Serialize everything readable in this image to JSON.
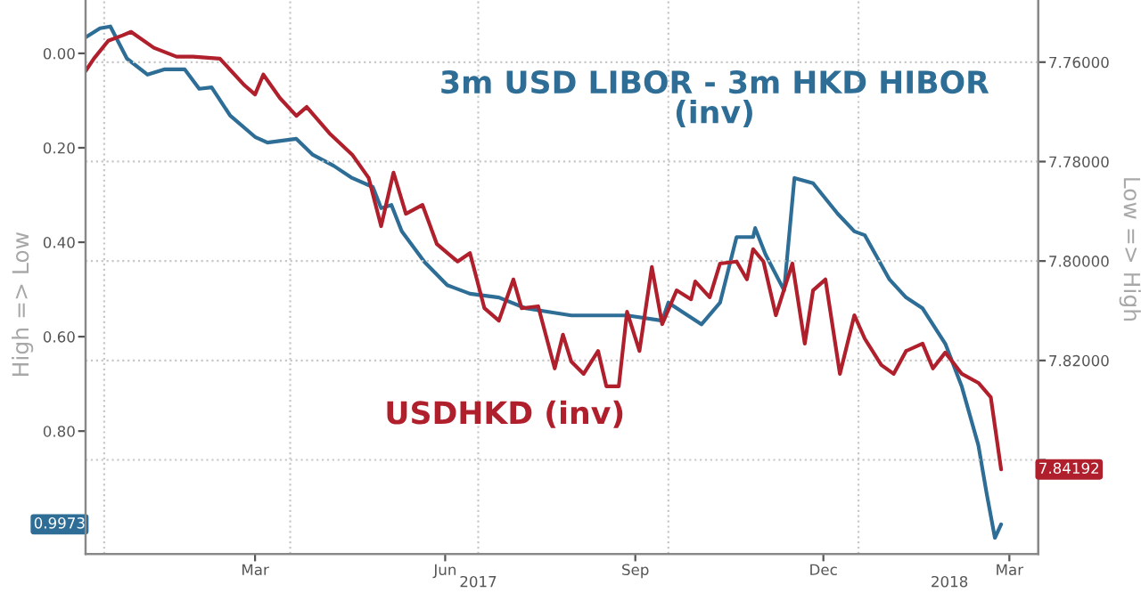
{
  "chart_data": {
    "type": "line",
    "ylabel": "High => Low",
    "y2label": "Low => High",
    "xlim": [
      "2016-12-23",
      "2018-03-29"
    ],
    "xticks": [
      {
        "value": "2017-03-15",
        "label": "Mar"
      },
      {
        "value": "2017-06-15",
        "label": "Jun"
      },
      {
        "value": "2017-09-15",
        "label": "Sep"
      },
      {
        "value": "2017-12-15",
        "label": "Dec"
      },
      {
        "value": "2018-03-15",
        "label": "Mar"
      }
    ],
    "x2lim": [
      "2016-12-23",
      "2018-03-29"
    ],
    "x2ticks": [
      {
        "value": "2017-07-01",
        "label": "2017"
      },
      {
        "value": "2018-02-14",
        "label": "2018"
      }
    ],
    "ylim": [
      1.06,
      -0.113
    ],
    "yticks": [
      {
        "value": 0,
        "label": "0.00"
      },
      {
        "value": 0.2,
        "label": "0.20"
      },
      {
        "value": 0.4,
        "label": "0.40"
      },
      {
        "value": 0.6,
        "label": "0.60"
      },
      {
        "value": 0.8,
        "label": "0.80"
      }
    ],
    "y2lim": [
      7.8589,
      7.7475
    ],
    "y2ticks": [
      {
        "value": 7.76,
        "label": "7.76000"
      },
      {
        "value": 7.78,
        "label": "7.78000"
      },
      {
        "value": 7.8,
        "label": "7.80000"
      },
      {
        "value": 7.82,
        "label": "7.82000"
      },
      {
        "value": 7.84,
        "label": null
      }
    ],
    "grid": "y",
    "legend": false,
    "ref_lines": [
      {
        "axis": "x",
        "value": "2017-01-01",
        "color": "#c8c8c8",
        "line_style": "dotted"
      },
      {
        "axis": "x",
        "value": "2017-04-01",
        "color": "#c8c8c8",
        "line_style": "dotted"
      },
      {
        "axis": "x",
        "value": "2017-07-01",
        "color": "#c8c8c8",
        "line_style": "dotted"
      },
      {
        "axis": "x",
        "value": "2017-10-01",
        "color": "#c8c8c8",
        "line_style": "dotted"
      },
      {
        "axis": "x",
        "value": "2018-01-01",
        "color": "#c8c8c8",
        "line_style": "dotted"
      }
    ],
    "annotations": [
      "0.9973",
      "7.84192"
    ],
    "series": [
      {
        "name": "3m USD LIBOR - 3m HKD HIBOR\n(inv)",
        "color": "#2e6e96",
        "axis": "y",
        "x": [
          "2016-12-23",
          "2016-12-30",
          "2017-01-04",
          "2017-01-12",
          "2017-01-22",
          "2017-01-30",
          "2017-02-09",
          "2017-02-16",
          "2017-02-22",
          "2017-03-03",
          "2017-03-15",
          "2017-03-21",
          "2017-04-04",
          "2017-04-12",
          "2017-04-22",
          "2017-05-01",
          "2017-05-11",
          "2017-05-15",
          "2017-05-20",
          "2017-05-25",
          "2017-06-05",
          "2017-06-16",
          "2017-06-27",
          "2017-07-11",
          "2017-07-24",
          "2017-08-15",
          "2017-09-11",
          "2017-09-28",
          "2017-10-01",
          "2017-10-17",
          "2017-10-26",
          "2017-11-03",
          "2017-11-11",
          "2017-11-12",
          "2017-11-17",
          "2017-11-26",
          "2017-12-01",
          "2017-12-10",
          "2017-12-22",
          "2017-12-30",
          "2018-01-04",
          "2018-01-16",
          "2018-01-24",
          "2018-02-01",
          "2018-02-12",
          "2018-02-20",
          "2018-02-28",
          "2018-03-04",
          "2018-03-08",
          "2018-03-11"
        ],
        "values": [
          -0.034,
          -0.053,
          -0.057,
          0.011,
          0.045,
          0.034,
          0.034,
          0.075,
          0.072,
          0.132,
          0.177,
          0.189,
          0.181,
          0.215,
          0.238,
          0.264,
          0.283,
          0.328,
          0.321,
          0.377,
          0.442,
          0.491,
          0.509,
          0.517,
          0.54,
          0.555,
          0.555,
          0.566,
          0.528,
          0.574,
          0.528,
          0.389,
          0.389,
          0.37,
          0.426,
          0.502,
          0.264,
          0.275,
          0.34,
          0.377,
          0.385,
          0.479,
          0.517,
          0.54,
          0.615,
          0.706,
          0.83,
          0.932,
          1.026,
          0.9973
        ]
      },
      {
        "name": "USDHKD (inv)",
        "color": "#b0202c",
        "axis": "y2",
        "x": [
          "2016-12-23",
          "2016-12-27",
          "2017-01-03",
          "2017-01-10",
          "2017-01-14",
          "2017-01-25",
          "2017-02-05",
          "2017-02-13",
          "2017-02-26",
          "2017-03-10",
          "2017-03-15",
          "2017-03-19",
          "2017-03-27",
          "2017-04-04",
          "2017-04-09",
          "2017-04-20",
          "2017-05-01",
          "2017-05-09",
          "2017-05-15",
          "2017-05-21",
          "2017-05-27",
          "2017-06-04",
          "2017-06-11",
          "2017-06-21",
          "2017-06-27",
          "2017-07-04",
          "2017-07-11",
          "2017-07-18",
          "2017-07-22",
          "2017-07-30",
          "2017-08-07",
          "2017-08-11",
          "2017-08-15",
          "2017-08-21",
          "2017-08-28",
          "2017-09-01",
          "2017-09-07",
          "2017-09-11",
          "2017-09-17",
          "2017-09-23",
          "2017-09-28",
          "2017-10-05",
          "2017-10-12",
          "2017-10-14",
          "2017-10-21",
          "2017-10-26",
          "2017-11-03",
          "2017-11-08",
          "2017-11-11",
          "2017-11-16",
          "2017-11-22",
          "2017-11-30",
          "2017-12-06",
          "2017-12-10",
          "2017-12-16",
          "2017-12-23",
          "2017-12-30",
          "2018-01-04",
          "2018-01-12",
          "2018-01-18",
          "2018-01-24",
          "2018-02-01",
          "2018-02-06",
          "2018-02-12",
          "2018-02-20",
          "2018-02-28",
          "2018-03-06",
          "2018-03-11"
        ],
        "values": [
          7.7618,
          7.7593,
          7.7557,
          7.7546,
          7.7539,
          7.7571,
          7.7589,
          7.7589,
          7.7593,
          7.7647,
          7.7665,
          7.7625,
          7.7672,
          7.7708,
          7.769,
          7.7743,
          7.7786,
          7.7833,
          7.793,
          7.7822,
          7.7905,
          7.7887,
          7.7966,
          7.8001,
          7.7984,
          7.8095,
          7.812,
          7.8037,
          7.8095,
          7.8091,
          7.8216,
          7.8148,
          7.8202,
          7.8227,
          7.8181,
          7.8252,
          7.8252,
          7.8102,
          7.8181,
          7.8012,
          7.8127,
          7.8059,
          7.8077,
          7.8041,
          7.8073,
          7.8005,
          7.8001,
          7.8037,
          7.7976,
          7.8001,
          7.8109,
          7.8005,
          7.8166,
          7.8059,
          7.8037,
          7.8227,
          7.8109,
          7.8156,
          7.8209,
          7.8227,
          7.8181,
          7.8166,
          7.8216,
          7.8184,
          7.8227,
          7.8245,
          7.8274,
          7.84192
        ]
      }
    ]
  }
}
